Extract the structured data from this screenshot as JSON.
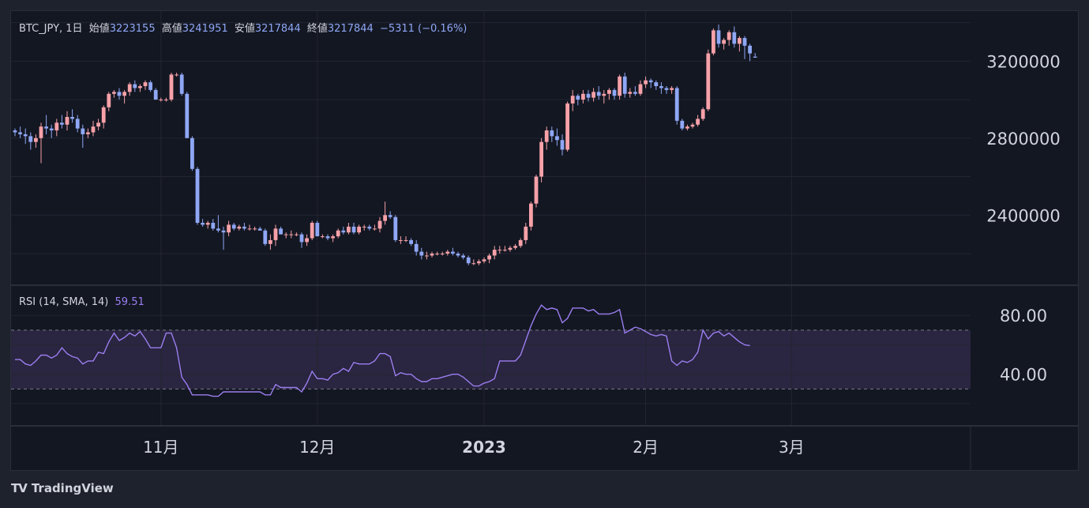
{
  "legend": {
    "symbol": "BTC_JPY, 1日",
    "open_label": "始値",
    "open_value": "3223155",
    "high_label": "高値",
    "high_value": "3241951",
    "low_label": "安値",
    "low_value": "3217844",
    "close_label": "終値",
    "close_value": "3217844",
    "change": "−5311 (−0.16%)"
  },
  "rsi_legend": {
    "label": "RSI (14, SMA, 14)",
    "value": "59.51"
  },
  "brand": {
    "logo": "TV",
    "name": "TradingView"
  },
  "colors": {
    "up": "#f7a1a8",
    "down": "#8fa7f5",
    "rsi_line": "#9b7ef0",
    "rsi_band": "#2a2540",
    "background": "#131722",
    "grid": "#232632"
  },
  "chart_data": [
    {
      "type": "candlestick",
      "symbol": "BTC_JPY",
      "interval": "1日",
      "x_tick_labels": [
        "11月",
        "12月",
        "2023",
        "2月",
        "3月"
      ],
      "y_tick_labels": [
        "2400000",
        "2800000",
        "3200000"
      ],
      "y_ticks": [
        2400000,
        2800000,
        3200000
      ],
      "ylim": [
        2040000,
        3460000
      ],
      "grid": true,
      "candles": [
        [
          2840000,
          2850000,
          2810000,
          2830000
        ],
        [
          2830000,
          2860000,
          2800000,
          2820000
        ],
        [
          2820000,
          2850000,
          2770000,
          2810000
        ],
        [
          2810000,
          2830000,
          2740000,
          2780000
        ],
        [
          2780000,
          2820000,
          2750000,
          2800000
        ],
        [
          2800000,
          2880000,
          2670000,
          2860000
        ],
        [
          2860000,
          2920000,
          2820000,
          2850000
        ],
        [
          2850000,
          2870000,
          2800000,
          2840000
        ],
        [
          2840000,
          2900000,
          2810000,
          2880000
        ],
        [
          2880000,
          2920000,
          2850000,
          2870000
        ],
        [
          2870000,
          2940000,
          2840000,
          2910000
        ],
        [
          2910000,
          2950000,
          2880000,
          2900000
        ],
        [
          2900000,
          2920000,
          2830000,
          2850000
        ],
        [
          2850000,
          2870000,
          2750000,
          2820000
        ],
        [
          2820000,
          2850000,
          2800000,
          2830000
        ],
        [
          2830000,
          2890000,
          2810000,
          2860000
        ],
        [
          2860000,
          2900000,
          2840000,
          2880000
        ],
        [
          2880000,
          2970000,
          2850000,
          2960000
        ],
        [
          2960000,
          3040000,
          2940000,
          3030000
        ],
        [
          3030000,
          3050000,
          3010000,
          3040000
        ],
        [
          3040000,
          3060000,
          3000000,
          3020000
        ],
        [
          3020000,
          3050000,
          2980000,
          3040000
        ],
        [
          3040000,
          3090000,
          3020000,
          3080000
        ],
        [
          3080000,
          3100000,
          3040000,
          3060000
        ],
        [
          3060000,
          3080000,
          3040000,
          3070000
        ],
        [
          3070000,
          3100000,
          3050000,
          3090000
        ],
        [
          3090000,
          3100000,
          3040000,
          3050000
        ],
        [
          3050000,
          3060000,
          3000000,
          3000000
        ],
        [
          3000000,
          3010000,
          2990000,
          3000000
        ],
        [
          3000000,
          3010000,
          2990000,
          3000000
        ],
        [
          3000000,
          3140000,
          2990000,
          3130000
        ],
        [
          3130000,
          3140000,
          3120000,
          3130000
        ],
        [
          3130000,
          3140000,
          3020000,
          3030000
        ],
        [
          3030000,
          3040000,
          2800000,
          2800000
        ],
        [
          2800000,
          2810000,
          2630000,
          2640000
        ],
        [
          2640000,
          2650000,
          2350000,
          2360000
        ],
        [
          2360000,
          2380000,
          2340000,
          2350000
        ],
        [
          2350000,
          2370000,
          2330000,
          2360000
        ],
        [
          2360000,
          2380000,
          2320000,
          2330000
        ],
        [
          2330000,
          2400000,
          2310000,
          2320000
        ],
        [
          2320000,
          2340000,
          2220000,
          2310000
        ],
        [
          2310000,
          2370000,
          2290000,
          2350000
        ],
        [
          2350000,
          2360000,
          2320000,
          2330000
        ],
        [
          2330000,
          2350000,
          2320000,
          2340000
        ],
        [
          2340000,
          2360000,
          2320000,
          2330000
        ],
        [
          2330000,
          2350000,
          2320000,
          2330000
        ],
        [
          2330000,
          2340000,
          2320000,
          2330000
        ],
        [
          2330000,
          2340000,
          2320000,
          2320000
        ],
        [
          2320000,
          2330000,
          2240000,
          2250000
        ],
        [
          2250000,
          2300000,
          2220000,
          2270000
        ],
        [
          2270000,
          2350000,
          2240000,
          2330000
        ],
        [
          2330000,
          2340000,
          2300000,
          2300000
        ],
        [
          2300000,
          2310000,
          2280000,
          2300000
        ],
        [
          2300000,
          2320000,
          2280000,
          2300000
        ],
        [
          2300000,
          2310000,
          2290000,
          2300000
        ],
        [
          2300000,
          2310000,
          2230000,
          2260000
        ],
        [
          2260000,
          2300000,
          2240000,
          2280000
        ],
        [
          2280000,
          2370000,
          2270000,
          2360000
        ],
        [
          2360000,
          2370000,
          2290000,
          2290000
        ],
        [
          2290000,
          2300000,
          2280000,
          2290000
        ],
        [
          2290000,
          2300000,
          2270000,
          2280000
        ],
        [
          2280000,
          2300000,
          2260000,
          2290000
        ],
        [
          2290000,
          2330000,
          2280000,
          2320000
        ],
        [
          2320000,
          2340000,
          2300000,
          2310000
        ],
        [
          2310000,
          2360000,
          2300000,
          2340000
        ],
        [
          2340000,
          2360000,
          2300000,
          2310000
        ],
        [
          2310000,
          2350000,
          2300000,
          2340000
        ],
        [
          2340000,
          2350000,
          2320000,
          2340000
        ],
        [
          2340000,
          2350000,
          2320000,
          2330000
        ],
        [
          2330000,
          2350000,
          2320000,
          2330000
        ],
        [
          2330000,
          2390000,
          2310000,
          2370000
        ],
        [
          2370000,
          2470000,
          2350000,
          2400000
        ],
        [
          2400000,
          2420000,
          2380000,
          2390000
        ],
        [
          2390000,
          2400000,
          2260000,
          2270000
        ],
        [
          2270000,
          2290000,
          2250000,
          2270000
        ],
        [
          2270000,
          2290000,
          2260000,
          2270000
        ],
        [
          2270000,
          2280000,
          2240000,
          2250000
        ],
        [
          2250000,
          2270000,
          2190000,
          2210000
        ],
        [
          2210000,
          2230000,
          2170000,
          2190000
        ],
        [
          2190000,
          2210000,
          2170000,
          2190000
        ],
        [
          2190000,
          2210000,
          2180000,
          2200000
        ],
        [
          2200000,
          2210000,
          2190000,
          2200000
        ],
        [
          2200000,
          2210000,
          2190000,
          2200000
        ],
        [
          2200000,
          2220000,
          2190000,
          2210000
        ],
        [
          2210000,
          2230000,
          2190000,
          2200000
        ],
        [
          2200000,
          2210000,
          2180000,
          2190000
        ],
        [
          2190000,
          2200000,
          2170000,
          2180000
        ],
        [
          2180000,
          2190000,
          2140000,
          2150000
        ],
        [
          2150000,
          2170000,
          2140000,
          2150000
        ],
        [
          2150000,
          2170000,
          2140000,
          2160000
        ],
        [
          2160000,
          2180000,
          2150000,
          2170000
        ],
        [
          2170000,
          2200000,
          2150000,
          2190000
        ],
        [
          2190000,
          2240000,
          2170000,
          2220000
        ],
        [
          2220000,
          2240000,
          2200000,
          2220000
        ],
        [
          2220000,
          2240000,
          2210000,
          2220000
        ],
        [
          2220000,
          2240000,
          2210000,
          2230000
        ],
        [
          2230000,
          2250000,
          2220000,
          2240000
        ],
        [
          2240000,
          2280000,
          2230000,
          2270000
        ],
        [
          2270000,
          2360000,
          2250000,
          2340000
        ],
        [
          2340000,
          2470000,
          2320000,
          2460000
        ],
        [
          2460000,
          2610000,
          2440000,
          2600000
        ],
        [
          2600000,
          2800000,
          2570000,
          2780000
        ],
        [
          2780000,
          2860000,
          2740000,
          2840000
        ],
        [
          2840000,
          2860000,
          2780000,
          2810000
        ],
        [
          2810000,
          2850000,
          2760000,
          2790000
        ],
        [
          2790000,
          2820000,
          2710000,
          2740000
        ],
        [
          2740000,
          2990000,
          2730000,
          2980000
        ],
        [
          2980000,
          3050000,
          2940000,
          3020000
        ],
        [
          3020000,
          3030000,
          2970000,
          3000000
        ],
        [
          3000000,
          3050000,
          2980000,
          3030000
        ],
        [
          3030000,
          3050000,
          2990000,
          3010000
        ],
        [
          3010000,
          3060000,
          2990000,
          3040000
        ],
        [
          3040000,
          3070000,
          3000000,
          3020000
        ],
        [
          3020000,
          3050000,
          2980000,
          3030000
        ],
        [
          3030000,
          3060000,
          3000000,
          3050000
        ],
        [
          3050000,
          3060000,
          3000000,
          3020000
        ],
        [
          3020000,
          3130000,
          3000000,
          3120000
        ],
        [
          3120000,
          3140000,
          3010000,
          3030000
        ],
        [
          3030000,
          3060000,
          3010000,
          3040000
        ],
        [
          3040000,
          3070000,
          3020000,
          3030000
        ],
        [
          3030000,
          3100000,
          3020000,
          3080000
        ],
        [
          3080000,
          3120000,
          3060000,
          3100000
        ],
        [
          3100000,
          3110000,
          3060000,
          3090000
        ],
        [
          3090000,
          3100000,
          3050000,
          3070000
        ],
        [
          3070000,
          3090000,
          3030000,
          3060000
        ],
        [
          3060000,
          3070000,
          3030000,
          3050000
        ],
        [
          3050000,
          3070000,
          3030000,
          3060000
        ],
        [
          3060000,
          3070000,
          2870000,
          2890000
        ],
        [
          2890000,
          2900000,
          2840000,
          2850000
        ],
        [
          2850000,
          2870000,
          2840000,
          2860000
        ],
        [
          2860000,
          2880000,
          2850000,
          2870000
        ],
        [
          2870000,
          2920000,
          2860000,
          2900000
        ],
        [
          2900000,
          2960000,
          2890000,
          2950000
        ],
        [
          2950000,
          3260000,
          2940000,
          3240000
        ],
        [
          3240000,
          3370000,
          3230000,
          3360000
        ],
        [
          3360000,
          3390000,
          3270000,
          3290000
        ],
        [
          3290000,
          3320000,
          3260000,
          3310000
        ],
        [
          3310000,
          3360000,
          3280000,
          3350000
        ],
        [
          3350000,
          3380000,
          3270000,
          3290000
        ],
        [
          3290000,
          3330000,
          3250000,
          3320000
        ],
        [
          3320000,
          3330000,
          3210000,
          3280000
        ],
        [
          3280000,
          3290000,
          3200000,
          3240000
        ],
        [
          3223155,
          3241951,
          3217844,
          3217844
        ]
      ]
    },
    {
      "type": "line",
      "name": "RSI (14, SMA, 14)",
      "y_tick_labels": [
        "40.00",
        "80.00"
      ],
      "y_ticks": [
        40,
        80
      ],
      "ylim": [
        6,
        100
      ],
      "bands": [
        30,
        70
      ],
      "last_value": 59.51,
      "values": [
        50,
        50,
        47,
        46,
        49,
        53,
        53,
        51,
        53,
        58,
        54,
        52,
        51,
        47,
        49,
        49,
        55,
        54,
        62,
        68,
        63,
        65,
        68,
        66,
        69,
        64,
        58,
        58,
        58,
        68,
        68,
        58,
        38,
        33,
        26,
        26,
        26,
        26,
        25,
        25,
        28,
        28,
        28,
        28,
        28,
        28,
        28,
        28,
        26,
        26,
        33,
        31,
        31,
        31,
        31,
        28,
        34,
        42,
        37,
        37,
        36,
        40,
        41,
        44,
        42,
        48,
        47,
        47,
        47,
        49,
        54,
        54,
        52,
        39,
        41,
        40,
        40,
        37,
        35,
        35,
        37,
        37,
        38,
        39,
        40,
        40,
        38,
        35,
        32,
        32,
        34,
        35,
        37,
        49,
        49,
        49,
        49,
        53,
        63,
        73,
        81,
        87,
        84,
        85,
        84,
        75,
        78,
        85,
        85,
        85,
        83,
        84,
        81,
        81,
        81,
        82,
        84,
        68,
        70,
        72,
        71,
        69,
        67,
        66,
        67,
        66,
        49,
        46,
        49,
        48,
        50,
        55,
        70,
        64,
        68,
        69,
        66,
        68,
        65,
        62,
        60,
        59.51
      ]
    }
  ]
}
